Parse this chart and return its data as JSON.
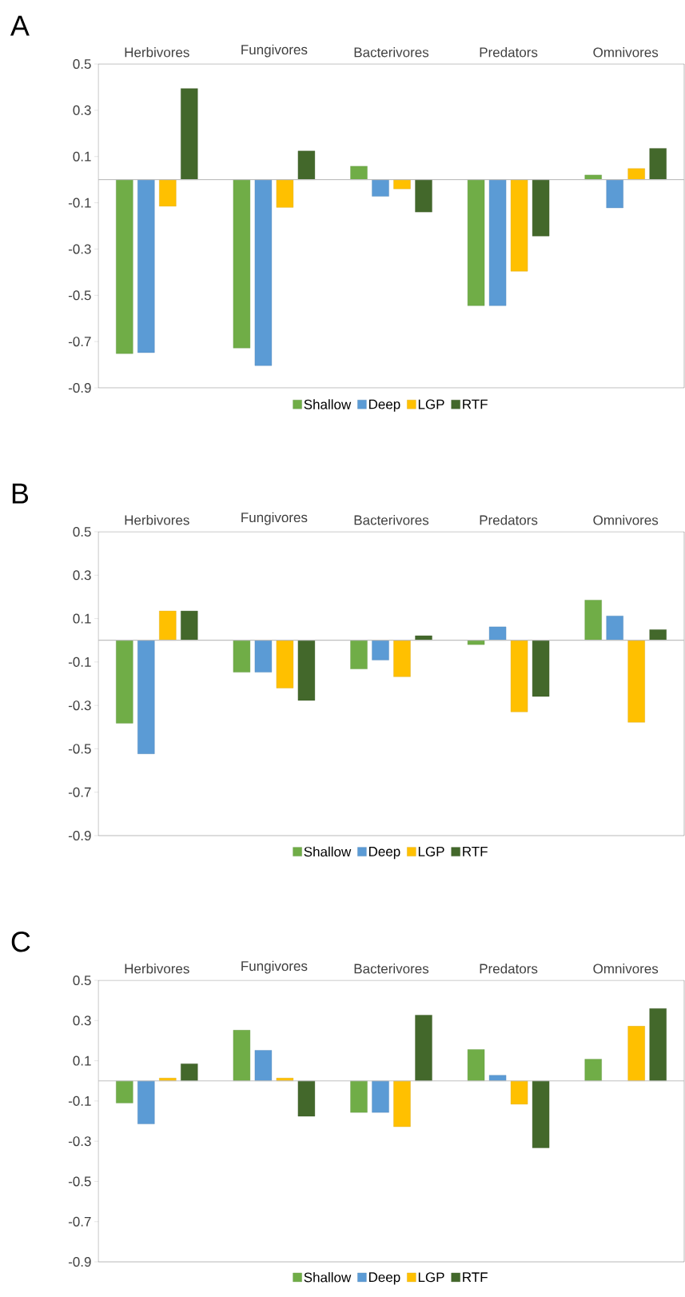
{
  "chart_data": [
    {
      "type": "bar",
      "title": "A",
      "categories": [
        "Herbivores",
        "Fungivores",
        "Bacterivores",
        "Predators",
        "Omnivores"
      ],
      "series": [
        {
          "name": "Shallow",
          "color": "#70ad47",
          "values": [
            -0.752,
            -0.728,
            0.058,
            -0.545,
            0.02
          ]
        },
        {
          "name": "Deep",
          "color": "#5b9bd5",
          "values": [
            -0.748,
            -0.804,
            -0.072,
            -0.545,
            -0.122
          ]
        },
        {
          "name": "LGP",
          "color": "#ffc000",
          "values": [
            -0.115,
            -0.12,
            -0.04,
            -0.396,
            0.048
          ]
        },
        {
          "name": "RTF",
          "color": "#43682b",
          "values": [
            0.394,
            0.124,
            -0.14,
            -0.244,
            0.135
          ]
        }
      ],
      "ylim": [
        -0.9,
        0.5
      ],
      "yticks": [
        0.5,
        0.3,
        0.1,
        -0.1,
        -0.3,
        -0.5,
        -0.7,
        -0.9
      ],
      "legend": "bottom"
    },
    {
      "type": "bar",
      "title": "B",
      "categories": [
        "Herbivores",
        "Fungivores",
        "Bacterivores",
        "Predators",
        "Omnivores"
      ],
      "series": [
        {
          "name": "Shallow",
          "color": "#70ad47",
          "values": [
            -0.382,
            -0.147,
            -0.132,
            -0.02,
            0.185
          ]
        },
        {
          "name": "Deep",
          "color": "#5b9bd5",
          "values": [
            -0.523,
            -0.147,
            -0.091,
            0.062,
            0.112
          ]
        },
        {
          "name": "LGP",
          "color": "#ffc000",
          "values": [
            0.135,
            -0.22,
            -0.168,
            -0.33,
            -0.378
          ]
        },
        {
          "name": "RTF",
          "color": "#43682b",
          "values": [
            0.135,
            -0.277,
            0.021,
            -0.259,
            0.049
          ]
        }
      ],
      "ylim": [
        -0.9,
        0.5
      ],
      "yticks": [
        0.5,
        0.3,
        0.1,
        -0.1,
        -0.3,
        -0.5,
        -0.7,
        -0.9
      ],
      "legend": "bottom"
    },
    {
      "type": "bar",
      "title": "C",
      "categories": [
        "Herbivores",
        "Fungivores",
        "Bacterivores",
        "Predators",
        "Omnivores"
      ],
      "series": [
        {
          "name": "Shallow",
          "color": "#70ad47",
          "values": [
            -0.11,
            0.252,
            -0.157,
            0.156,
            0.108
          ]
        },
        {
          "name": "Deep",
          "color": "#5b9bd5",
          "values": [
            -0.214,
            0.152,
            -0.157,
            0.028,
            null
          ]
        },
        {
          "name": "LGP",
          "color": "#ffc000",
          "values": [
            0.014,
            0.014,
            -0.228,
            -0.116,
            0.272
          ]
        },
        {
          "name": "RTF",
          "color": "#43682b",
          "values": [
            0.085,
            -0.176,
            0.327,
            -0.333,
            0.36
          ]
        }
      ],
      "ylim": [
        -0.9,
        0.5
      ],
      "yticks": [
        0.5,
        0.3,
        0.1,
        -0.1,
        -0.3,
        -0.5,
        -0.7,
        -0.9
      ],
      "legend": "bottom"
    }
  ]
}
